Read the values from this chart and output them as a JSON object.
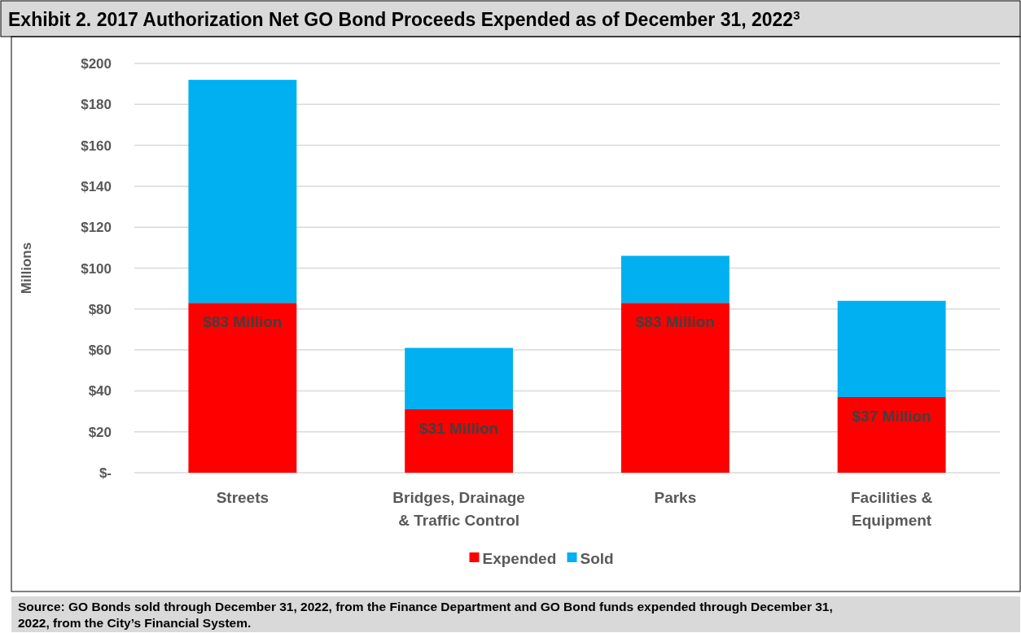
{
  "chart_data": {
    "type": "bar",
    "title": "Exhibit 2. 2017 Authorization Net GO Bond Proceeds Expended as of December 31, 2022$^{3}$",
    "ylabel": "Millions",
    "categories": [
      "Streets",
      "Bridges, Drainage & Traffic Control",
      "Parks",
      "Facilities & Equipment"
    ],
    "stacked": true,
    "series": [
      {
        "name": "Expended",
        "color": "#ff0000",
        "values": [
          83,
          31,
          83,
          37
        ],
        "value_labels": [
          "$83 Million",
          "$31 Million",
          "$83 Million",
          "$37 Million"
        ]
      },
      {
        "name": "Sold",
        "color": "#00b0f0",
        "values": [
          109,
          30,
          23,
          47
        ]
      }
    ],
    "ylim": [
      0,
      200
    ],
    "yticks": [
      {
        "value": 0,
        "label": "$-"
      },
      {
        "value": 20,
        "label": "$20"
      },
      {
        "value": 40,
        "label": "$40"
      },
      {
        "value": 60,
        "label": "$60"
      },
      {
        "value": 80,
        "label": "$80"
      },
      {
        "value": 100,
        "label": "$100"
      },
      {
        "value": 120,
        "label": "$120"
      },
      {
        "value": 140,
        "label": "$140"
      },
      {
        "value": 160,
        "label": "$160"
      },
      {
        "value": 180,
        "label": "$180"
      },
      {
        "value": 200,
        "label": "$200"
      }
    ],
    "grid": "y",
    "legend": "bottom",
    "annotations": [
      "Source: GO Bonds sold through December 31, 2022, from the Finance Department and GO Bond funds expended through December 31, 2022, from the City’s Financial System."
    ]
  }
}
